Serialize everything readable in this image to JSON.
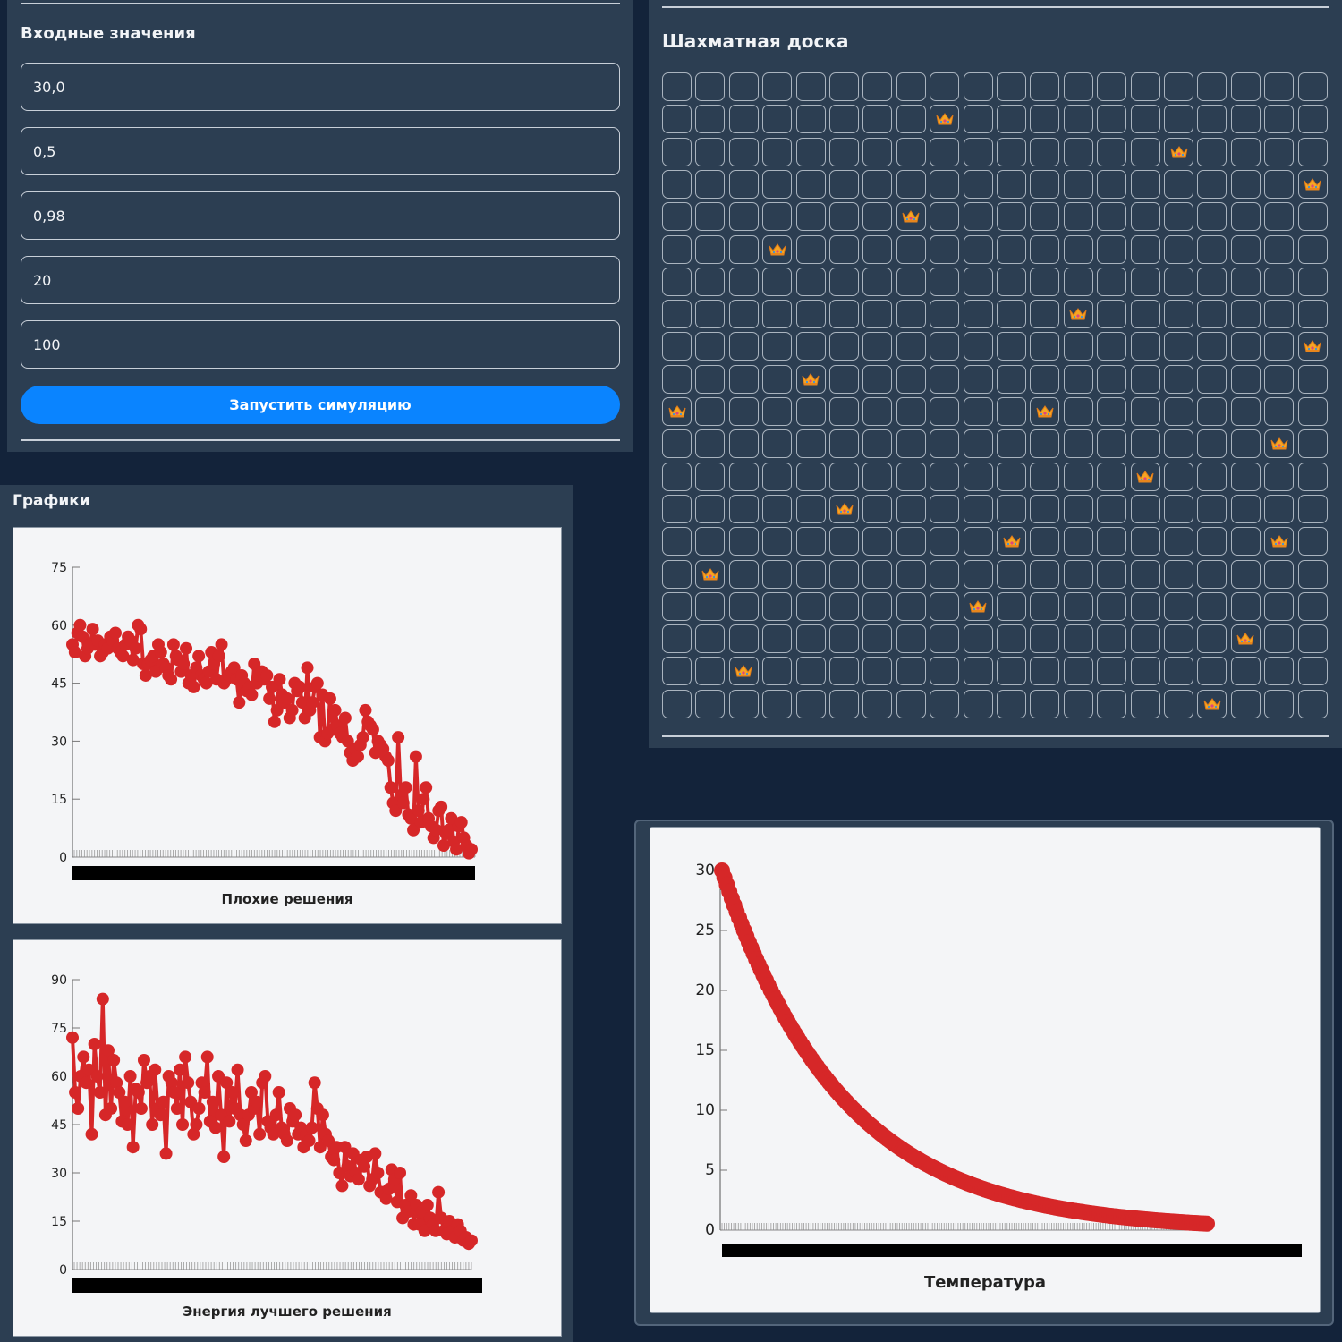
{
  "inputs": {
    "title": "Входные значения",
    "fields": [
      "30,0",
      "0,5",
      "0,98",
      "20",
      "100"
    ],
    "run_label": "Запустить симуляцию"
  },
  "board": {
    "title": "Шахматная доска",
    "size": 20,
    "queens": [
      {
        "row": 1,
        "col": 8
      },
      {
        "row": 2,
        "col": 15
      },
      {
        "row": 3,
        "col": 19
      },
      {
        "row": 4,
        "col": 7
      },
      {
        "row": 5,
        "col": 3
      },
      {
        "row": 7,
        "col": 12
      },
      {
        "row": 8,
        "col": 19
      },
      {
        "row": 9,
        "col": 4
      },
      {
        "row": 10,
        "col": 0
      },
      {
        "row": 10,
        "col": 11
      },
      {
        "row": 11,
        "col": 18
      },
      {
        "row": 12,
        "col": 14
      },
      {
        "row": 13,
        "col": 5
      },
      {
        "row": 14,
        "col": 10
      },
      {
        "row": 14,
        "col": 18
      },
      {
        "row": 15,
        "col": 1
      },
      {
        "row": 16,
        "col": 9
      },
      {
        "row": 17,
        "col": 17
      },
      {
        "row": 18,
        "col": 2
      },
      {
        "row": 19,
        "col": 16
      }
    ],
    "icon": "crown-icon"
  },
  "charts_section": {
    "title": "Графики"
  },
  "chart_data": [
    {
      "type": "line",
      "title": "Плохие решения",
      "xlabel": "Плохие решения",
      "ylabel": "",
      "ylim": [
        0,
        75
      ],
      "yticks": [
        0,
        15,
        30,
        45,
        60,
        75
      ],
      "color": "#d62728",
      "values": [
        55,
        53,
        58,
        60,
        57,
        52,
        54,
        55,
        59,
        55,
        56,
        52,
        53,
        55,
        54,
        57,
        56,
        58,
        54,
        53,
        52,
        55,
        57,
        56,
        51,
        54,
        60,
        59,
        50,
        47,
        50,
        51,
        52,
        48,
        55,
        53,
        50,
        49,
        47,
        46,
        55,
        52,
        51,
        48,
        50,
        54,
        45,
        47,
        44,
        49,
        52,
        47,
        46,
        45,
        48,
        53,
        50,
        46,
        52,
        55,
        45,
        46,
        47,
        48,
        49,
        46,
        40,
        47,
        45,
        43,
        44,
        42,
        50,
        45,
        47,
        48,
        46,
        47,
        41,
        44,
        35,
        38,
        46,
        42,
        40,
        41,
        36,
        38,
        45,
        43,
        44,
        40,
        36,
        49,
        38,
        40,
        44,
        45,
        31,
        42,
        30,
        32,
        41,
        33,
        38,
        34,
        32,
        31,
        36,
        30,
        27,
        25,
        28,
        26,
        29,
        31,
        38,
        35,
        34,
        33,
        27,
        30,
        29,
        28,
        26,
        25,
        18,
        14,
        12,
        31,
        16,
        14,
        18,
        11,
        10,
        7,
        26,
        12,
        9,
        15,
        18,
        10,
        8,
        5,
        7,
        12,
        13,
        3,
        6,
        7,
        10,
        4,
        2,
        8,
        9,
        5,
        3,
        1,
        2
      ],
      "x_tick_count": 159
    },
    {
      "type": "line",
      "title": "Энергия лучшего решения",
      "xlabel": "Энергия лучшего решения",
      "ylabel": "",
      "ylim": [
        0,
        90
      ],
      "yticks": [
        0,
        15,
        30,
        45,
        60,
        75,
        90
      ],
      "color": "#d62728",
      "values": [
        72,
        55,
        50,
        60,
        66,
        58,
        62,
        42,
        70,
        60,
        55,
        84,
        48,
        68,
        50,
        65,
        58,
        55,
        46,
        52,
        45,
        60,
        38,
        56,
        55,
        50,
        65,
        58,
        60,
        45,
        62,
        50,
        48,
        52,
        36,
        60,
        58,
        55,
        50,
        62,
        45,
        66,
        58,
        52,
        42,
        45,
        50,
        58,
        55,
        66,
        46,
        52,
        44,
        60,
        48,
        35,
        58,
        46,
        55,
        50,
        62,
        48,
        45,
        40,
        48,
        55,
        50,
        52,
        42,
        58,
        60,
        46,
        44,
        42,
        48,
        55,
        44,
        42,
        40,
        50,
        46,
        48,
        42,
        44,
        38,
        42,
        40,
        44,
        58,
        50,
        38,
        48,
        42,
        40,
        35,
        34,
        38,
        30,
        26,
        38,
        32,
        29,
        36,
        30,
        28,
        34,
        32,
        35,
        26,
        28,
        36,
        30,
        24,
        24,
        22,
        25,
        31,
        28,
        21,
        30,
        16,
        20,
        18,
        23,
        14,
        20,
        14,
        18,
        12,
        20,
        16,
        14,
        12,
        24,
        16,
        12,
        11,
        15,
        12,
        10,
        14,
        12,
        9,
        10,
        8,
        9
      ],
      "x_tick_count": 146
    },
    {
      "type": "line",
      "title": "Температура",
      "xlabel": "Температура",
      "ylabel": "",
      "ylim": [
        0,
        30
      ],
      "yticks": [
        0,
        5,
        10,
        15,
        20,
        25,
        30
      ],
      "color": "#d62728",
      "start": 30.0,
      "decay": 0.98,
      "count": 200
    }
  ]
}
